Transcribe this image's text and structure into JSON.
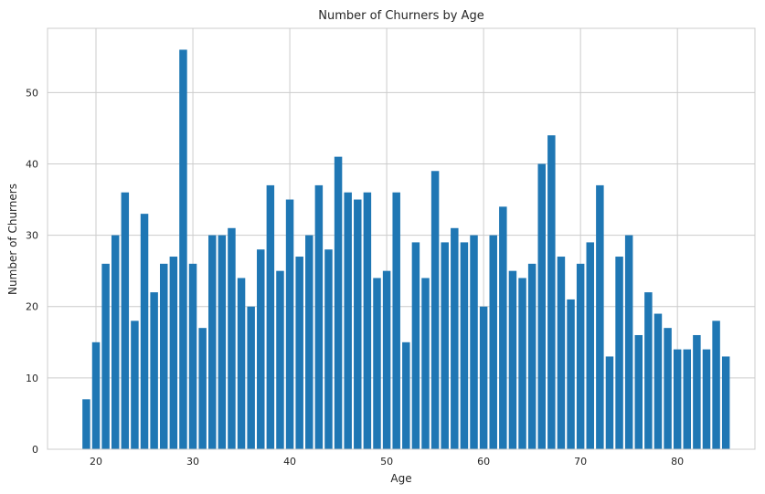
{
  "chart_data": {
    "type": "bar",
    "title": "Number of Churners by Age",
    "xlabel": "Age",
    "ylabel": "Number of Churners",
    "x": [
      19,
      20,
      21,
      22,
      23,
      24,
      25,
      26,
      27,
      28,
      29,
      30,
      31,
      32,
      33,
      34,
      35,
      36,
      37,
      38,
      39,
      40,
      41,
      42,
      43,
      44,
      45,
      46,
      47,
      48,
      49,
      50,
      51,
      52,
      53,
      54,
      55,
      56,
      57,
      58,
      59,
      60,
      61,
      62,
      63,
      64,
      65,
      66,
      67,
      68,
      69,
      70,
      71,
      72,
      73,
      74,
      75,
      76,
      77,
      78,
      79,
      80,
      81,
      82,
      83,
      84,
      85
    ],
    "values": [
      7,
      15,
      26,
      30,
      36,
      18,
      33,
      22,
      26,
      27,
      56,
      26,
      17,
      30,
      30,
      31,
      24,
      20,
      28,
      37,
      25,
      35,
      27,
      30,
      37,
      28,
      41,
      36,
      35,
      36,
      24,
      25,
      36,
      15,
      29,
      24,
      39,
      29,
      31,
      29,
      30,
      20,
      30,
      34,
      25,
      24,
      26,
      40,
      44,
      27,
      21,
      26,
      29,
      37,
      13,
      27,
      30,
      16,
      22,
      19,
      17,
      14,
      14,
      16,
      14,
      18,
      13
    ],
    "xlim": [
      15,
      88
    ],
    "ylim": [
      0,
      59
    ],
    "xticks": [
      20,
      30,
      40,
      50,
      60,
      70,
      80
    ],
    "yticks": [
      0,
      10,
      20,
      30,
      40,
      50
    ],
    "bar_color": "#1f77b4",
    "grid": true,
    "style": "seaborn-whitegrid"
  }
}
